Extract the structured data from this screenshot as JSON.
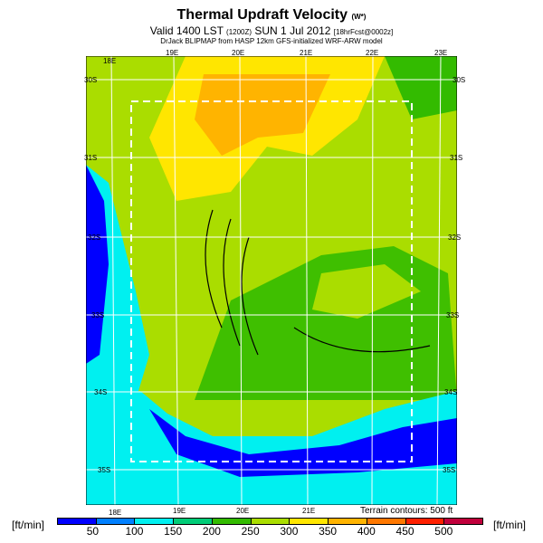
{
  "title": "Thermal Updraft Velocity",
  "title_note": "(W*)",
  "valid_line": "Valid 1400 LST",
  "valid_code": "(1200Z)",
  "valid_date": "SUN 1 Jul 2012",
  "valid_fcst": "[18hrFcst@0002z]",
  "model_line": "DrJack BLIPMAP from HASP 12km GFS-initialized WRF-ARW model",
  "axes": {
    "top_lon": [
      "18E",
      "19E",
      "20E",
      "21E",
      "22E",
      "23E"
    ],
    "bottom_lon": [
      "18E",
      "19E",
      "20E",
      "21E"
    ],
    "lat_left": [
      "30S",
      "31S",
      "32S",
      "33S",
      "34S",
      "35S"
    ],
    "lat_right": [
      "30S",
      "31S",
      "32S",
      "33S",
      "34S",
      "35S"
    ]
  },
  "terrain_note": "Terrain contours: 500 ft",
  "colorbar": {
    "unit_left": "[ft/min]",
    "unit_right": "[ft/min]",
    "ticks": [
      "50",
      "100",
      "150",
      "200",
      "250",
      "300",
      "350",
      "400",
      "450",
      "500"
    ],
    "colors": [
      "#0000ff",
      "#0080ff",
      "#00f0f0",
      "#00cc77",
      "#33bb00",
      "#aadd00",
      "#ffe600",
      "#ffb400",
      "#ff7800",
      "#ff2000",
      "#c0003c"
    ]
  }
}
